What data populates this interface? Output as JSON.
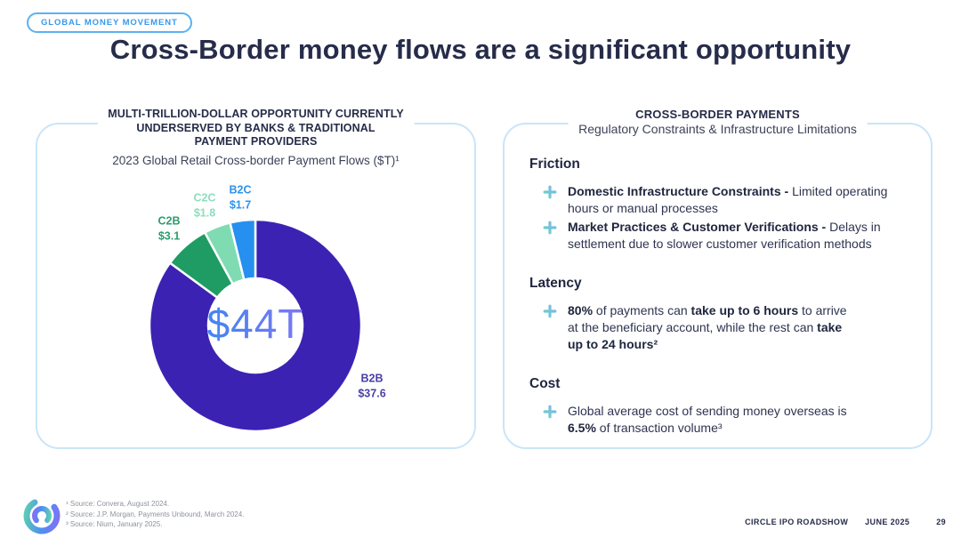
{
  "badge": {
    "label": "GLOBAL MONEY MOVEMENT"
  },
  "title": "Cross-Border money flows are a significant opportunity",
  "left_panel": {
    "heading": "MULTI-TRILLION-DOLLAR OPPORTUNITY CURRENTLY\nUNDERSERVED BY BANKS & TRADITIONAL\nPAYMENT PROVIDERS",
    "subtitle": "2023 Global Retail Cross-border Payment Flows ($T)¹"
  },
  "chart_data": {
    "type": "pie",
    "variant": "donut",
    "title": "2023 Global Retail Cross-border Payment Flows ($T)",
    "center_label": "$44T",
    "total": 44.2,
    "start_angle_deg": 0,
    "direction": "clockwise",
    "segments": [
      {
        "label": "B2B",
        "value": 37.6,
        "display": "$37.6",
        "color": "#3c22b3",
        "label_color": "#4a3fa5"
      },
      {
        "label": "C2B",
        "value": 3.1,
        "display": "$3.1",
        "color": "#1f9c64",
        "label_color": "#2d9c6d"
      },
      {
        "label": "C2C",
        "value": 1.8,
        "display": "$1.8",
        "color": "#7fdcb2",
        "label_color": "#8bdebd"
      },
      {
        "label": "B2C",
        "value": 1.7,
        "display": "$1.7",
        "color": "#2590ef",
        "label_color": "#2e93ea"
      }
    ]
  },
  "right_panel": {
    "heading": "CROSS-BORDER PAYMENTS",
    "subheading": "Regulatory Constraints & Infrastructure Limitations",
    "sections": [
      {
        "heading": "Friction",
        "bullets": [
          [
            {
              "t": "Domestic Infrastructure Constraints - ",
              "b": true
            },
            {
              "t": "Limited operating\nhours or manual processes",
              "b": false
            }
          ],
          [
            {
              "t": "Market Practices & Customer Verifications - ",
              "b": true
            },
            {
              "t": "Delays in\nsettlement due to slower customer verification methods",
              "b": false
            }
          ]
        ]
      },
      {
        "heading": "Latency",
        "bullets": [
          [
            {
              "t": "80%",
              "b": true
            },
            {
              "t": " of payments can ",
              "b": false
            },
            {
              "t": "take up to 6 hours",
              "b": true
            },
            {
              "t": " to arrive\nat the beneficiary account, while the rest can ",
              "b": false
            },
            {
              "t": "take\nup to 24 hours²",
              "b": true
            }
          ]
        ]
      },
      {
        "heading": "Cost",
        "bullets": [
          [
            {
              "t": "Global average cost of sending money overseas is\n",
              "b": false
            },
            {
              "t": "6.5%",
              "b": true
            },
            {
              "t": " of transaction volume³",
              "b": false
            }
          ]
        ]
      }
    ]
  },
  "footer": {
    "sources": [
      "¹ Source: Convera, August 2024.",
      "² Source: J.P. Morgan, Payments Unbound, March 2024.",
      "³ Source: Nium, January 2025."
    ],
    "deck_label": "CIRCLE IPO ROADSHOW",
    "date": "JUNE 2025",
    "page_number": "29"
  },
  "colors": {
    "accent_blue": "#3898ec",
    "panel_border": "#c9e5f9",
    "heading_navy": "#262c49",
    "body_text": "#2e3450",
    "plus_teal": "#6fd3c1",
    "plus_blue": "#7ab4f1",
    "center_gradient_start": "#3f86f0",
    "center_gradient_end": "#8b74f3",
    "source_gray": "#8d929c"
  }
}
